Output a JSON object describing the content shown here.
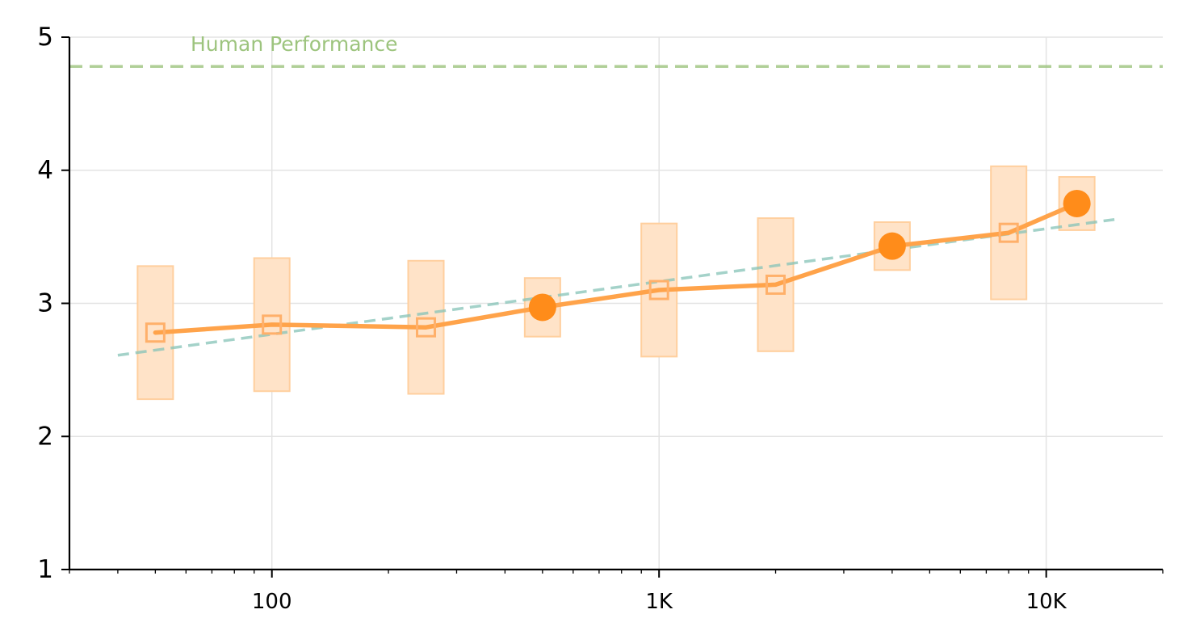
{
  "chart_data": {
    "type": "line",
    "title": "",
    "xlabel": "",
    "ylabel": "",
    "x_scale": "log",
    "xlim": [
      30,
      20000
    ],
    "ylim": [
      1,
      5
    ],
    "grid": true,
    "x_ticks": [
      {
        "value": 100,
        "label": "100"
      },
      {
        "value": 1000,
        "label": "1K"
      },
      {
        "value": 10000,
        "label": "10K"
      }
    ],
    "y_ticks": [
      {
        "value": 1,
        "label": "1"
      },
      {
        "value": 2,
        "label": "2"
      },
      {
        "value": 3,
        "label": "3"
      },
      {
        "value": 4,
        "label": "4"
      },
      {
        "value": 5,
        "label": "5"
      }
    ],
    "reference_line": {
      "label": "Human Performance",
      "value": 4.78,
      "color": "#9dc47e"
    },
    "series": [
      {
        "color": "#ff8c1a",
        "points": [
          {
            "x": 50,
            "y": 2.78,
            "low": 2.28,
            "high": 3.28,
            "marker": "open-square"
          },
          {
            "x": 100,
            "y": 2.84,
            "low": 2.34,
            "high": 3.34,
            "marker": "open-square"
          },
          {
            "x": 250,
            "y": 2.82,
            "low": 2.32,
            "high": 3.32,
            "marker": "open-square"
          },
          {
            "x": 500,
            "y": 2.97,
            "low": 2.75,
            "high": 3.19,
            "marker": "filled-circle"
          },
          {
            "x": 1000,
            "y": 3.1,
            "low": 2.6,
            "high": 3.6,
            "marker": "open-square"
          },
          {
            "x": 2000,
            "y": 3.14,
            "low": 2.64,
            "high": 3.64,
            "marker": "open-square"
          },
          {
            "x": 4000,
            "y": 3.43,
            "low": 3.25,
            "high": 3.61,
            "marker": "filled-circle"
          },
          {
            "x": 8000,
            "y": 3.53,
            "low": 3.03,
            "high": 4.03,
            "marker": "open-square"
          },
          {
            "x": 12000,
            "y": 3.75,
            "low": 3.55,
            "high": 3.95,
            "marker": "filled-circle"
          }
        ]
      }
    ],
    "trend_line": {
      "color": "#86c4b8",
      "x": [
        40,
        15000
      ],
      "y": [
        2.61,
        3.63
      ]
    }
  }
}
